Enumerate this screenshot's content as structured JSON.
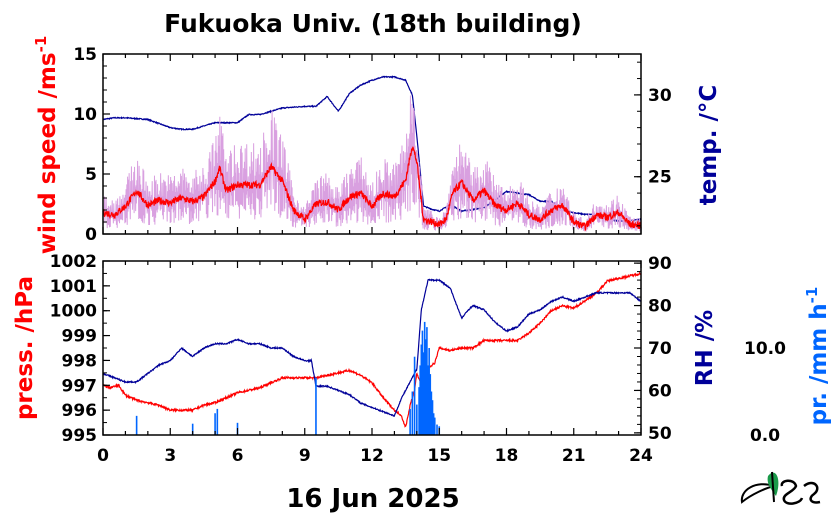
{
  "title": "Fukuoka Univ. (18th building)",
  "date_label": "16 Jun 2025",
  "colors": {
    "red": "#ff0000",
    "navy": "#000099",
    "blue": "#0066ff",
    "pink": "#d9a0e0",
    "logo_green": "#1a9a4a"
  },
  "logo_icon": "mes-leaf-logo-icon",
  "chart_data": [
    {
      "type": "line",
      "panel": "top",
      "xlim": [
        0,
        24
      ],
      "xticks": [
        0,
        3,
        6,
        9,
        12,
        15,
        18,
        21,
        24
      ],
      "ylabel_left": "wind speed /ms",
      "ylabel_left_sup": "-1",
      "ylim_left": [
        0,
        15
      ],
      "yticks_left": [
        0,
        5,
        10,
        15
      ],
      "ylabel_right": "temp. /°C",
      "ylim_right": [
        21.5,
        32.5
      ],
      "yticks_right": [
        25,
        30
      ],
      "series": [
        {
          "axis": "right",
          "color": "navy",
          "x": [
            0,
            0.5,
            1,
            2,
            3,
            3.5,
            4,
            5,
            6,
            6.5,
            7,
            8,
            9,
            9.5,
            10,
            10.5,
            11,
            11.5,
            12,
            12.5,
            13,
            13.5,
            13.8,
            14,
            14.3,
            14.7,
            15,
            15.5,
            16,
            16.5,
            17,
            17.5,
            18,
            18.5,
            19,
            19.5,
            20,
            20.5,
            21,
            21.5,
            22,
            22.5,
            23,
            23.5,
            24
          ],
          "y": [
            28.5,
            28.6,
            28.6,
            28.5,
            28.0,
            27.9,
            27.9,
            28.3,
            28.3,
            28.8,
            28.8,
            29.2,
            29.3,
            29.3,
            29.9,
            29.0,
            30.1,
            30.6,
            30.9,
            31.1,
            31.1,
            30.9,
            30.0,
            27.5,
            23.2,
            23.0,
            22.9,
            23.3,
            22.9,
            23.0,
            23.1,
            23.6,
            24.1,
            24.0,
            23.9,
            23.5,
            23.5,
            23.0,
            22.8,
            22.7,
            22.7,
            22.4,
            22.3,
            22.3,
            22.4
          ]
        },
        {
          "axis": "left",
          "color": "red",
          "x": [
            0,
            0.5,
            1,
            1.5,
            2,
            2.5,
            3,
            3.5,
            4,
            4.5,
            5,
            5.2,
            5.5,
            6,
            6.5,
            7,
            7.5,
            8,
            8.5,
            9,
            9.5,
            10,
            10.5,
            11,
            11.5,
            12,
            12.5,
            13,
            13.5,
            13.8,
            14,
            14.3,
            14.7,
            15,
            15.3,
            15.6,
            16,
            16.5,
            17,
            17.5,
            18,
            18.5,
            19,
            19.5,
            20,
            20.5,
            21,
            21.5,
            22,
            22.5,
            23,
            23.5,
            24
          ],
          "y": [
            1.8,
            1.6,
            2.3,
            3.6,
            2.4,
            2.8,
            2.6,
            3.0,
            2.7,
            3.1,
            4.4,
            5.5,
            3.6,
            4.1,
            4.1,
            4.1,
            5.6,
            4.4,
            2.0,
            1.2,
            2.5,
            2.7,
            2.0,
            3.1,
            3.4,
            2.3,
            3.4,
            3.1,
            4.5,
            7.4,
            6.0,
            1.2,
            1.0,
            0.8,
            1.2,
            3.4,
            4.3,
            2.8,
            3.6,
            2.4,
            2.0,
            2.6,
            1.6,
            1.2,
            2.0,
            2.4,
            1.0,
            0.6,
            1.6,
            1.4,
            1.8,
            0.8,
            0.7
          ]
        }
      ]
    },
    {
      "type": "line",
      "panel": "bottom",
      "xlim": [
        0,
        24
      ],
      "xticks": [
        0,
        3,
        6,
        9,
        12,
        15,
        18,
        21,
        24
      ],
      "ylabel_left": "press. /hPa",
      "ylim_left": [
        995,
        1002
      ],
      "yticks_left": [
        995,
        996,
        997,
        998,
        999,
        1000,
        1001,
        1002
      ],
      "ylabel_right": "RH /%",
      "ylim_right": [
        49.5,
        90.5
      ],
      "yticks_right": [
        50,
        60,
        70,
        80,
        90
      ],
      "ylabel_far_right": "pr. /mm h",
      "ylabel_far_right_sup": "-1",
      "ylim_far_right": [
        0,
        20
      ],
      "yticks_far_right": [
        "0.0",
        "10.0"
      ],
      "series": [
        {
          "axis": "left",
          "color": "red",
          "x": [
            0,
            0.3,
            0.7,
            1,
            1.5,
            2,
            2.5,
            3,
            3.5,
            4,
            4.5,
            5,
            5.5,
            6,
            6.5,
            7,
            7.5,
            8,
            8.5,
            9,
            9.5,
            10,
            10.5,
            11,
            11.5,
            12,
            12.5,
            13,
            13.3,
            13.5,
            13.7,
            13.9,
            14,
            14.2,
            14.5,
            14.8,
            15,
            15.5,
            16,
            16.5,
            17,
            17.5,
            18,
            18.5,
            19,
            19.5,
            20,
            20.5,
            21,
            21.5,
            22,
            22.5,
            23,
            23.5,
            24
          ],
          "y": [
            997.0,
            996.9,
            997.0,
            996.6,
            996.4,
            996.3,
            996.2,
            996.0,
            996.0,
            996.0,
            996.2,
            996.3,
            996.5,
            996.7,
            996.8,
            996.9,
            997.1,
            997.3,
            997.3,
            997.3,
            997.3,
            997.4,
            997.5,
            997.6,
            997.4,
            997.1,
            996.5,
            996.0,
            995.8,
            995.3,
            996.2,
            996.8,
            997.5,
            997.0,
            997.7,
            997.9,
            998.5,
            998.4,
            998.5,
            998.5,
            998.8,
            998.8,
            998.8,
            998.8,
            999.1,
            999.5,
            1000.0,
            1000.2,
            1000.1,
            1000.4,
            1000.7,
            1001.2,
            1001.3,
            1001.4,
            1001.5
          ]
        },
        {
          "axis": "right",
          "color": "navy",
          "x": [
            0,
            0.5,
            1,
            1.5,
            2,
            2.5,
            3,
            3.5,
            4,
            4.5,
            5,
            5.5,
            6,
            6.5,
            7,
            7.5,
            8,
            8.5,
            9,
            9.3,
            9.5,
            10,
            10.5,
            11,
            11.5,
            12,
            12.5,
            13,
            13.3,
            13.7,
            14,
            14.2,
            14.5,
            15,
            15.5,
            16,
            16.3,
            16.5,
            17,
            17.5,
            18,
            18.5,
            19,
            19.5,
            20,
            20.5,
            21,
            21.5,
            22,
            22.5,
            23,
            23.5,
            24
          ],
          "y": [
            64,
            63,
            62,
            62,
            64,
            66,
            67,
            70,
            68,
            70,
            71,
            71,
            72,
            71,
            71,
            70,
            70,
            68,
            67,
            67,
            61,
            61,
            60,
            59,
            57,
            56,
            55,
            54,
            58,
            62,
            65,
            79,
            86,
            86,
            84,
            77,
            79,
            80,
            79,
            76,
            74,
            75,
            78,
            79,
            81,
            82,
            81,
            82,
            83,
            83,
            83,
            83,
            81
          ]
        },
        {
          "axis": "far_right",
          "type": "bar",
          "color": "blue",
          "x": [
            1.5,
            4.0,
            5.0,
            5.1,
            6.0,
            9.5,
            13.7,
            13.8,
            13.9,
            14.0,
            14.1,
            14.15,
            14.2,
            14.25,
            14.3,
            14.35,
            14.4,
            14.45,
            14.5,
            14.55,
            14.6,
            14.65,
            14.7,
            14.75,
            14.8,
            14.9,
            15.0
          ],
          "y": [
            2.2,
            1.3,
            2.5,
            3.0,
            1.4,
            6.6,
            3.0,
            5.0,
            9.0,
            3.5,
            5.5,
            8.0,
            10.4,
            12.0,
            9.5,
            13.0,
            11.0,
            12.4,
            8.0,
            10.0,
            7.0,
            5.0,
            4.0,
            2.5,
            2.0,
            1.2,
            1.0
          ]
        }
      ]
    }
  ]
}
